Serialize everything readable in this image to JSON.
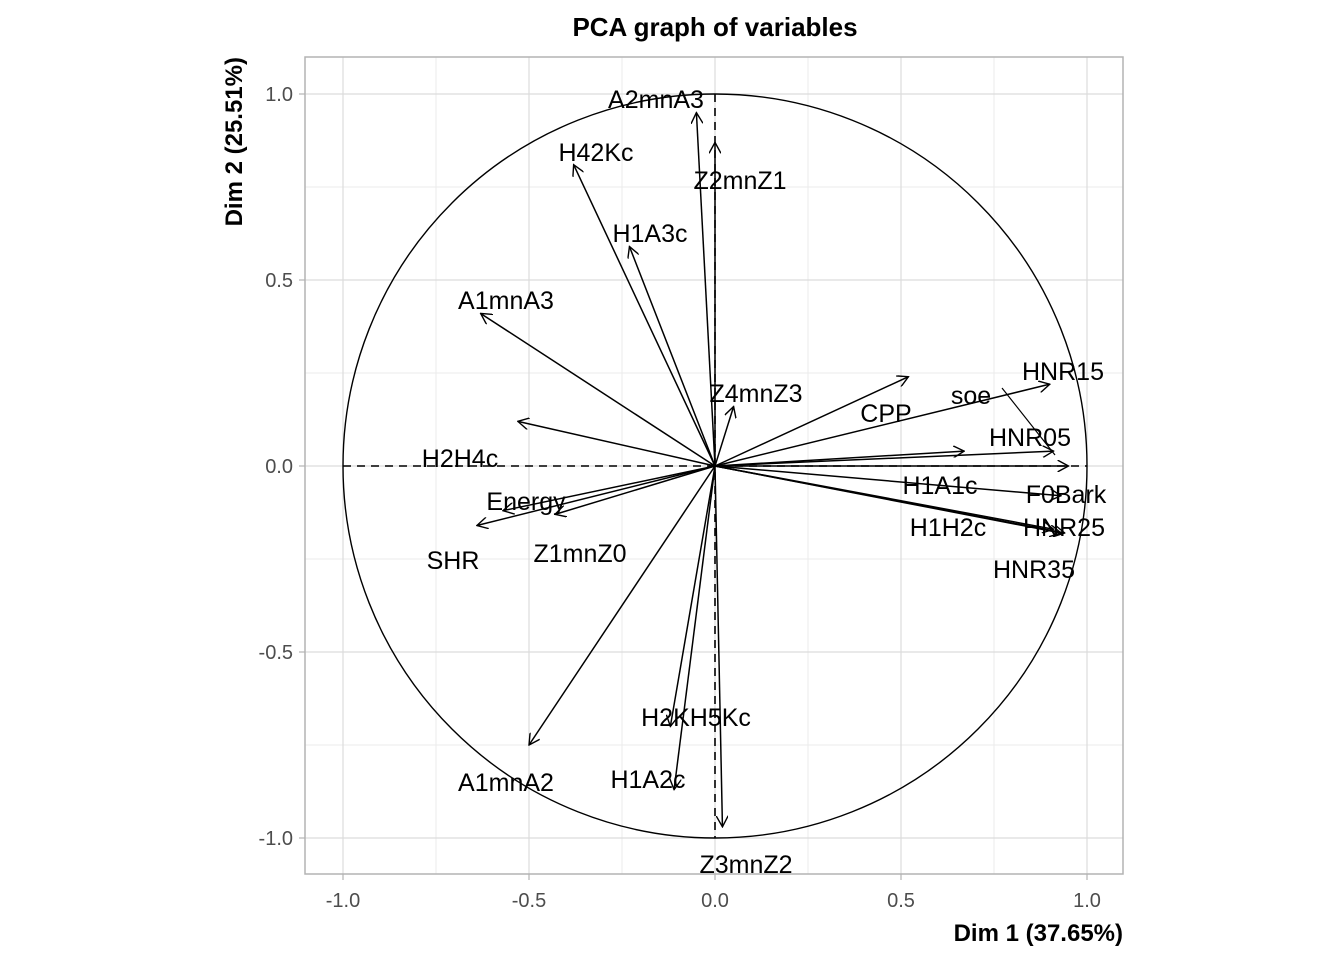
{
  "chart_data": {
    "type": "scatter",
    "subtype": "pca-correlation-circle",
    "title": "PCA graph of variables",
    "xlabel": "Dim 1 (37.65%)",
    "ylabel": "Dim 2 (25.51%)",
    "xlim": [
      -1.1,
      1.1
    ],
    "ylim": [
      -1.1,
      1.1
    ],
    "x_ticks": [
      "-1.0",
      "-0.5",
      "0.0",
      "0.5",
      "1.0"
    ],
    "x_tick_values": [
      -1.0,
      -0.5,
      0.0,
      0.5,
      1.0
    ],
    "y_ticks": [
      "1.0",
      "0.5",
      "0.0",
      "-0.5",
      "-1.0"
    ],
    "y_tick_values": [
      1.0,
      0.5,
      0.0,
      -0.5,
      -1.0
    ],
    "grid": true,
    "unit_circle": true,
    "variables": [
      {
        "name": "A2mnA3",
        "x": -0.05,
        "y": 0.95
      },
      {
        "name": "H42Kc",
        "x": -0.38,
        "y": 0.81
      },
      {
        "name": "Z2mnZ1",
        "x": 0.0,
        "y": 0.87
      },
      {
        "name": "H1A3c",
        "x": -0.23,
        "y": 0.59
      },
      {
        "name": "A1mnA3",
        "x": -0.63,
        "y": 0.41
      },
      {
        "name": "Z4mnZ3",
        "x": 0.05,
        "y": 0.16
      },
      {
        "name": "CPP",
        "x": 0.52,
        "y": 0.24
      },
      {
        "name": "HNR15",
        "x": 0.9,
        "y": 0.22
      },
      {
        "name": "soe",
        "x": 0.95,
        "y": 0.0
      },
      {
        "name": "HNR05",
        "x": 0.91,
        "y": 0.04
      },
      {
        "name": "H1A1c",
        "x": 0.67,
        "y": 0.04
      },
      {
        "name": "F0Bark",
        "x": 0.93,
        "y": -0.08
      },
      {
        "name": "H1H2c",
        "x": 0.91,
        "y": -0.17
      },
      {
        "name": "HNR25",
        "x": 0.93,
        "y": -0.18
      },
      {
        "name": "HNR35",
        "x": 0.94,
        "y": -0.18
      },
      {
        "name": "H2H4c",
        "x": -0.53,
        "y": 0.12
      },
      {
        "name": "Energy",
        "x": -0.57,
        "y": -0.12
      },
      {
        "name": "SHR",
        "x": -0.64,
        "y": -0.16
      },
      {
        "name": "Z1mnZ0",
        "x": -0.43,
        "y": -0.13
      },
      {
        "name": "A1mnA2",
        "x": -0.5,
        "y": -0.75
      },
      {
        "name": "H2KH5Kc",
        "x": -0.12,
        "y": -0.7
      },
      {
        "name": "H1A2c",
        "x": -0.11,
        "y": -0.87
      },
      {
        "name": "Z3mnZ2",
        "x": 0.02,
        "y": -0.97
      }
    ]
  }
}
